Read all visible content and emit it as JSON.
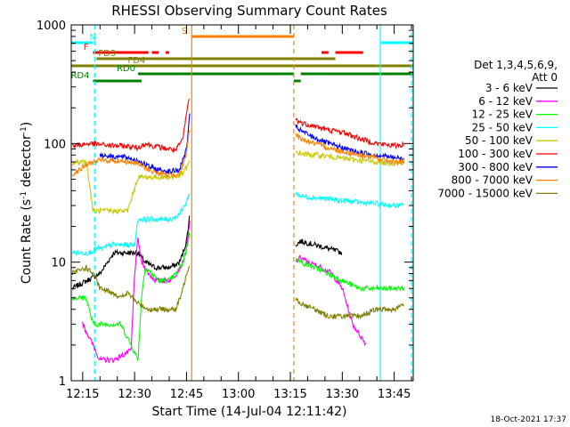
{
  "chart_data": {
    "type": "line",
    "title": "RHESSI Observing Summary Count Rates",
    "xlabel": "Start Time (14-Jul-04 12:11:42)",
    "ylabel": "Count Rate (s",
    "ylabel_sup": "-1",
    "ylabel_tail": " detector",
    "ylabel_end": ")",
    "yscale": "log",
    "ylim": [
      1,
      1000
    ],
    "y_ticks": [
      {
        "v": 1,
        "label": "1"
      },
      {
        "v": 10,
        "label": "10"
      },
      {
        "v": 100,
        "label": "100"
      },
      {
        "v": 1000,
        "label": "1000"
      }
    ],
    "xlim_min": [
      11.7,
      110.5
    ],
    "x_ticks": [
      {
        "m": 15,
        "label": "12:15"
      },
      {
        "m": 30,
        "label": "12:30"
      },
      {
        "m": 45,
        "label": "12:45"
      },
      {
        "m": 60,
        "label": "13:00"
      },
      {
        "m": 75,
        "label": "13:15"
      },
      {
        "m": 90,
        "label": "13:30"
      },
      {
        "m": 105,
        "label": "13:45"
      }
    ],
    "legend_title_1": "Det 1,3,4,5,6,9,",
    "legend_title_2": "Att 0",
    "series": [
      {
        "name": "3 - 6 keV",
        "color": "#000000",
        "pts": [
          [
            12,
            6
          ],
          [
            20,
            8
          ],
          [
            24,
            12
          ],
          [
            29,
            12
          ],
          [
            31,
            12
          ],
          [
            33,
            10
          ],
          [
            36,
            9
          ],
          [
            38,
            9
          ],
          [
            40,
            9
          ],
          [
            42,
            9.5
          ],
          [
            43,
            10
          ],
          [
            44,
            12
          ],
          [
            45,
            15
          ],
          [
            46,
            26
          ],
          [
            76.5,
            14
          ],
          [
            78,
            15
          ],
          [
            82,
            14
          ],
          [
            86,
            13
          ],
          [
            90,
            12
          ]
        ]
      },
      {
        "name": "6 - 12 keV",
        "color": "#ff00ff",
        "pts": [
          [
            15,
            3
          ],
          [
            18,
            2
          ],
          [
            20,
            1.5
          ],
          [
            24,
            1.5
          ],
          [
            29,
            1.8
          ],
          [
            30,
            8
          ],
          [
            31,
            16
          ],
          [
            32,
            10
          ],
          [
            34,
            8
          ],
          [
            36,
            7
          ],
          [
            38,
            7
          ],
          [
            40,
            7
          ],
          [
            42,
            8
          ],
          [
            44,
            10
          ],
          [
            45,
            13
          ],
          [
            46,
            22
          ],
          [
            76.5,
            10
          ],
          [
            78,
            11
          ],
          [
            80,
            10
          ],
          [
            84,
            9
          ],
          [
            87,
            8
          ],
          [
            90,
            6
          ],
          [
            93,
            3
          ],
          [
            97,
            2
          ]
        ]
      },
      {
        "name": "12 - 25 keV",
        "color": "#00ff00",
        "pts": [
          [
            12,
            5
          ],
          [
            14,
            5
          ],
          [
            16,
            5
          ],
          [
            18,
            3
          ],
          [
            22,
            3
          ],
          [
            26,
            3
          ],
          [
            29,
            2
          ],
          [
            31,
            1.5
          ],
          [
            32,
            5
          ],
          [
            33,
            9
          ],
          [
            35,
            8
          ],
          [
            37,
            7
          ],
          [
            40,
            7
          ],
          [
            42,
            8
          ],
          [
            44,
            10
          ],
          [
            45,
            13
          ],
          [
            46,
            18
          ],
          [
            76.5,
            11
          ],
          [
            78,
            10
          ],
          [
            82,
            9
          ],
          [
            86,
            8
          ],
          [
            90,
            7
          ],
          [
            95,
            6
          ],
          [
            100,
            6
          ],
          [
            105,
            6
          ],
          [
            108,
            6
          ]
        ]
      },
      {
        "name": "25 - 50 keV",
        "color": "#00ffff",
        "pts": [
          [
            12,
            12
          ],
          [
            14,
            12
          ],
          [
            17,
            12
          ],
          [
            19,
            13
          ],
          [
            21,
            13
          ],
          [
            23,
            14
          ],
          [
            26,
            14
          ],
          [
            28,
            14
          ],
          [
            30,
            14
          ],
          [
            31,
            23
          ],
          [
            33,
            23
          ],
          [
            35,
            23
          ],
          [
            38,
            23
          ],
          [
            40,
            23
          ],
          [
            42,
            24
          ],
          [
            44,
            28
          ],
          [
            46,
            38
          ],
          [
            76.5,
            38
          ],
          [
            78,
            36
          ],
          [
            82,
            35
          ],
          [
            86,
            34
          ],
          [
            90,
            33
          ],
          [
            95,
            32
          ],
          [
            100,
            31
          ],
          [
            105,
            30
          ],
          [
            108,
            30
          ]
        ]
      },
      {
        "name": "50 - 100 keV",
        "color": "#c8c800",
        "pts": [
          [
            12,
            68
          ],
          [
            14,
            70
          ],
          [
            16,
            72
          ],
          [
            18,
            27
          ],
          [
            20,
            27
          ],
          [
            24,
            27
          ],
          [
            26,
            27
          ],
          [
            28,
            27
          ],
          [
            31,
            52
          ],
          [
            33,
            52
          ],
          [
            36,
            52
          ],
          [
            40,
            52
          ],
          [
            42,
            52
          ],
          [
            44,
            56
          ],
          [
            46,
            70
          ],
          [
            76.5,
            85
          ],
          [
            78,
            82
          ],
          [
            82,
            80
          ],
          [
            86,
            78
          ],
          [
            90,
            75
          ],
          [
            95,
            72
          ],
          [
            100,
            70
          ],
          [
            105,
            68
          ],
          [
            108,
            70
          ]
        ]
      },
      {
        "name": "100 - 300 keV",
        "color": "#ff0000",
        "pts": [
          [
            12,
            95
          ],
          [
            15,
            98
          ],
          [
            17,
            100
          ],
          [
            20,
            98
          ],
          [
            24,
            96
          ],
          [
            28,
            95
          ],
          [
            31,
            92
          ],
          [
            33,
            100
          ],
          [
            35,
            96
          ],
          [
            38,
            92
          ],
          [
            40,
            90
          ],
          [
            42,
            88
          ],
          [
            44,
            110
          ],
          [
            45,
            180
          ],
          [
            46,
            260
          ],
          [
            76.5,
            160
          ],
          [
            78,
            150
          ],
          [
            82,
            140
          ],
          [
            86,
            130
          ],
          [
            90,
            125
          ],
          [
            95,
            110
          ],
          [
            100,
            100
          ],
          [
            105,
            96
          ],
          [
            108,
            98
          ]
        ]
      },
      {
        "name": "300 - 800 keV",
        "color": "#0000ff",
        "pts": [
          [
            20,
            80
          ],
          [
            24,
            78
          ],
          [
            28,
            76
          ],
          [
            31,
            72
          ],
          [
            34,
            64
          ],
          [
            37,
            60
          ],
          [
            40,
            58
          ],
          [
            43,
            60
          ],
          [
            45,
            90
          ],
          [
            46,
            180
          ],
          [
            76.5,
            140
          ],
          [
            78,
            128
          ],
          [
            82,
            112
          ],
          [
            86,
            100
          ],
          [
            90,
            92
          ],
          [
            95,
            84
          ],
          [
            100,
            80
          ],
          [
            105,
            76
          ],
          [
            108,
            74
          ]
        ]
      },
      {
        "name": "800 - 7000 keV",
        "color": "#ff8000",
        "pts": [
          [
            12,
            55
          ],
          [
            14,
            60
          ],
          [
            16,
            66
          ],
          [
            18,
            70
          ],
          [
            20,
            72
          ],
          [
            24,
            72
          ],
          [
            28,
            70
          ],
          [
            31,
            68
          ],
          [
            34,
            60
          ],
          [
            37,
            56
          ],
          [
            40,
            54
          ],
          [
            43,
            56
          ],
          [
            45,
            80
          ],
          [
            46,
            150
          ],
          [
            76.5,
            120
          ],
          [
            78,
            110
          ],
          [
            82,
            100
          ],
          [
            86,
            92
          ],
          [
            90,
            86
          ],
          [
            95,
            80
          ],
          [
            100,
            75
          ],
          [
            105,
            70
          ],
          [
            108,
            70
          ]
        ]
      },
      {
        "name": "7000 - 15000 keV",
        "color": "#808000",
        "pts": [
          [
            12,
            8
          ],
          [
            14,
            8.5
          ],
          [
            16,
            9
          ],
          [
            18,
            8
          ],
          [
            20,
            6
          ],
          [
            24,
            5.5
          ],
          [
            26,
            5
          ],
          [
            28,
            5.5
          ],
          [
            31,
            4.5
          ],
          [
            34,
            4
          ],
          [
            36,
            4
          ],
          [
            38,
            4
          ],
          [
            40,
            4
          ],
          [
            42,
            4
          ],
          [
            44,
            6
          ],
          [
            45,
            8
          ],
          [
            46,
            10
          ],
          [
            76.5,
            5
          ],
          [
            78,
            4.5
          ],
          [
            82,
            4
          ],
          [
            86,
            3.5
          ],
          [
            90,
            3.5
          ],
          [
            95,
            3.5
          ],
          [
            100,
            4
          ],
          [
            105,
            4
          ],
          [
            108,
            4.5
          ]
        ]
      }
    ],
    "flag_bars": [
      {
        "label": "N",
        "color": "#00ffff",
        "segments": [
          [
            11.7,
            18
          ],
          [
            101,
            110.5
          ]
        ]
      },
      {
        "label": "F",
        "color": "#ff0000",
        "segments": [
          [
            18,
            34
          ],
          [
            35,
            37
          ],
          [
            39,
            40
          ],
          [
            84,
            86
          ],
          [
            88,
            96
          ]
        ]
      },
      {
        "label": "S",
        "color": "#ff8000",
        "segments": [
          [
            46.5,
            76
          ]
        ]
      },
      {
        "label": "FD3",
        "color": "#808000",
        "segments": [
          [
            19,
            88
          ]
        ]
      },
      {
        "label": "FD4",
        "color": "#808000",
        "segments": [
          [
            11.7,
            100
          ],
          [
            100,
            110.5
          ]
        ]
      },
      {
        "label": "RD0",
        "color": "#008000",
        "segments": [
          [
            31,
            76
          ],
          [
            78,
            110.5
          ]
        ]
      },
      {
        "label": "RD4",
        "color": "#008000",
        "segments": [
          [
            18,
            32
          ],
          [
            76,
            78
          ]
        ]
      }
    ],
    "vlines": [
      {
        "m": 18.5,
        "color": "#00ffff",
        "dashed": true
      },
      {
        "m": 46.5,
        "color": "#ff8000",
        "dashed": false
      },
      {
        "m": 76,
        "color": "#ff8000",
        "dashed": true
      },
      {
        "m": 101,
        "color": "#00ffff",
        "dashed": false
      },
      {
        "m": 110,
        "color": "#00ffff",
        "dashed": true
      }
    ],
    "grid": false,
    "legend_position": "right",
    "timestamp": "18-Oct-2021 17:37"
  }
}
